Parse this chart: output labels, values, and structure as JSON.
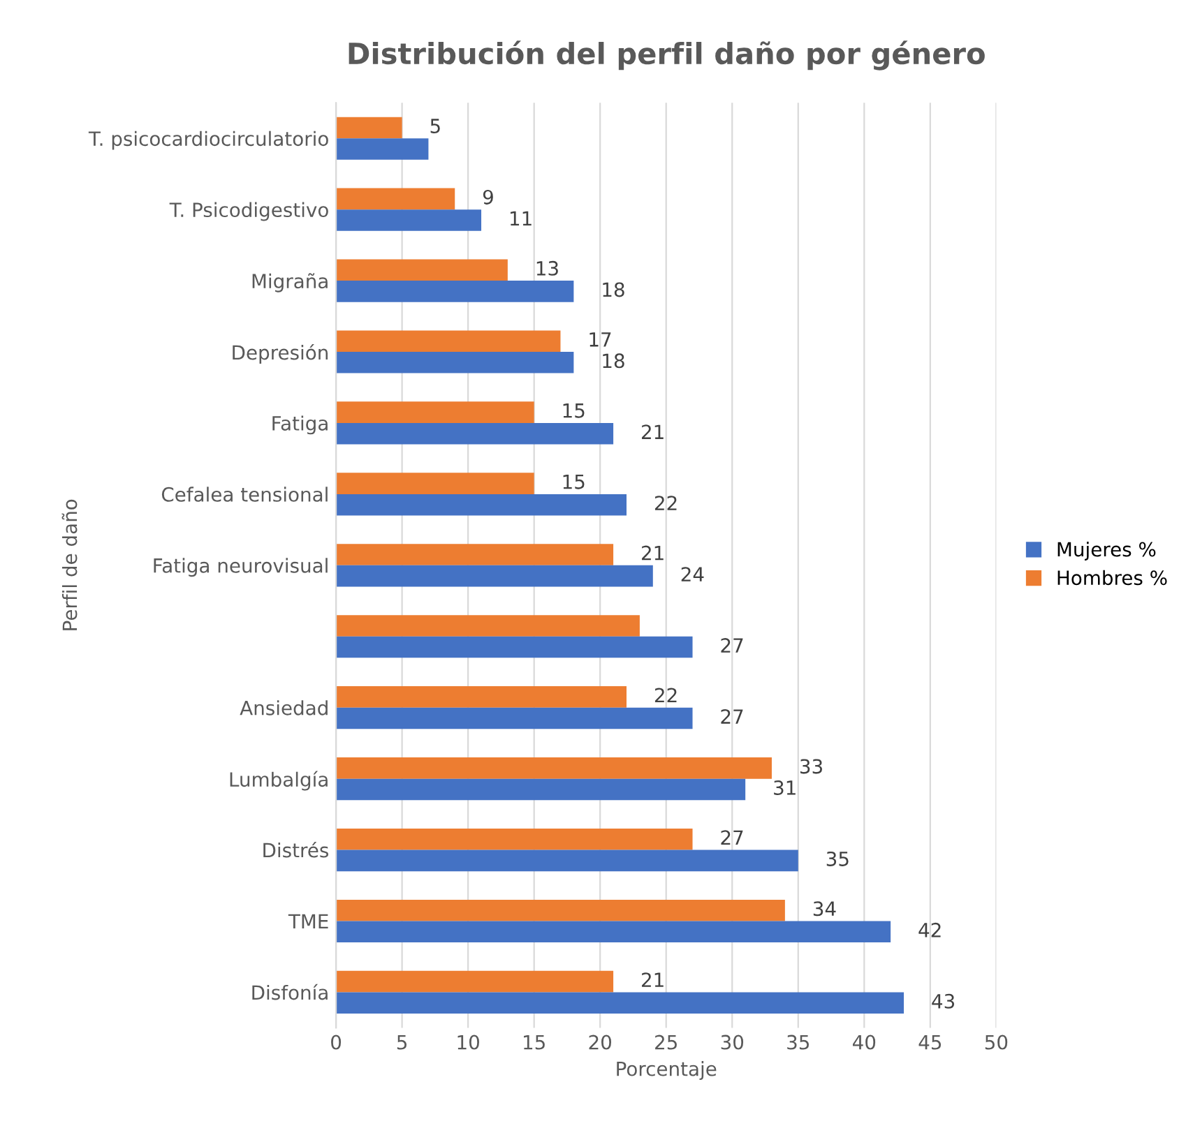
{
  "chart_data": {
    "type": "bar",
    "orientation": "horizontal",
    "title": "Distribución del perfil daño por género",
    "xlabel": "Porcentaje",
    "ylabel": "Perfil de daño",
    "categories": [
      "T. psicocardiocirculatorio",
      "T. Psicodigestivo",
      "Migraña",
      "Depresión",
      "Fatiga",
      "Cefalea tensional",
      "Fatiga neurovisual",
      null,
      "Ansiedad",
      "Lumbalgía",
      "Distrés",
      "TME",
      "Disfonía"
    ],
    "series": [
      {
        "name": "Hombres %",
        "color": "#ed7d31",
        "values": [
          5,
          9,
          13,
          17,
          15,
          15,
          21,
          23,
          22,
          33,
          27,
          34,
          21
        ],
        "value_labels": [
          "5",
          "9",
          "13",
          "17",
          "15",
          "15",
          "21",
          null,
          "22",
          "33",
          "27",
          "34",
          "21"
        ]
      },
      {
        "name": "Mujeres %",
        "color": "#4472c4",
        "values": [
          7,
          11,
          18,
          18,
          21,
          22,
          24,
          27,
          27,
          31,
          35,
          42,
          43
        ],
        "value_labels": [
          null,
          "11",
          "18",
          "18",
          "21",
          "22",
          "24",
          "27",
          "27",
          "31",
          "35",
          "42",
          "43"
        ]
      }
    ],
    "xlim": [
      0,
      50
    ],
    "xticks": [
      0,
      5,
      10,
      15,
      20,
      25,
      30,
      35,
      40,
      45,
      50
    ],
    "grid": "x",
    "legend": "right"
  }
}
